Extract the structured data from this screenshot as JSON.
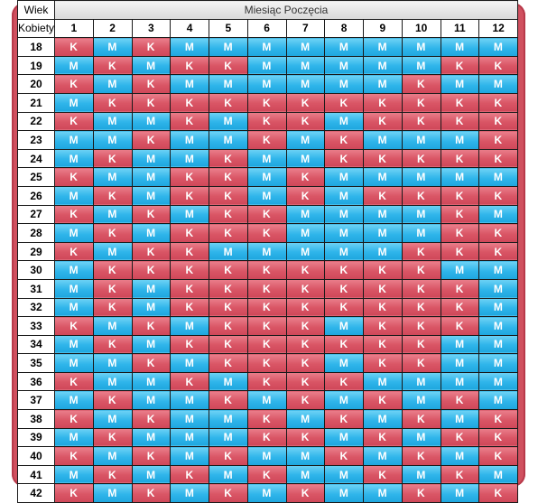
{
  "header": {
    "age_label": "Wiek",
    "age_sublabel": "Kobiety",
    "month_title": "Miesiąc Poczęcia",
    "months": [
      "1",
      "2",
      "3",
      "4",
      "5",
      "6",
      "7",
      "8",
      "9",
      "10",
      "11",
      "12"
    ]
  },
  "colors": {
    "K": "#d95565",
    "M": "#2fb5ea"
  },
  "rows": [
    {
      "age": "18",
      "cells": [
        "K",
        "M",
        "K",
        "M",
        "M",
        "M",
        "M",
        "M",
        "M",
        "M",
        "M",
        "M"
      ]
    },
    {
      "age": "19",
      "cells": [
        "M",
        "K",
        "M",
        "K",
        "K",
        "M",
        "M",
        "M",
        "M",
        "M",
        "K",
        "K"
      ]
    },
    {
      "age": "20",
      "cells": [
        "K",
        "M",
        "K",
        "M",
        "M",
        "M",
        "M",
        "M",
        "M",
        "K",
        "M",
        "M"
      ]
    },
    {
      "age": "21",
      "cells": [
        "M",
        "K",
        "K",
        "K",
        "K",
        "K",
        "K",
        "K",
        "K",
        "K",
        "K",
        "K"
      ]
    },
    {
      "age": "22",
      "cells": [
        "K",
        "M",
        "M",
        "K",
        "M",
        "K",
        "K",
        "M",
        "K",
        "K",
        "K",
        "K"
      ]
    },
    {
      "age": "23",
      "cells": [
        "M",
        "M",
        "K",
        "M",
        "M",
        "K",
        "M",
        "K",
        "M",
        "M",
        "M",
        "K"
      ]
    },
    {
      "age": "24",
      "cells": [
        "M",
        "K",
        "M",
        "M",
        "K",
        "M",
        "M",
        "K",
        "K",
        "K",
        "K",
        "K"
      ]
    },
    {
      "age": "25",
      "cells": [
        "K",
        "M",
        "M",
        "K",
        "K",
        "M",
        "K",
        "M",
        "M",
        "M",
        "M",
        "M"
      ]
    },
    {
      "age": "26",
      "cells": [
        "M",
        "K",
        "M",
        "K",
        "K",
        "M",
        "K",
        "M",
        "K",
        "K",
        "K",
        "K"
      ]
    },
    {
      "age": "27",
      "cells": [
        "K",
        "M",
        "K",
        "M",
        "K",
        "K",
        "M",
        "M",
        "M",
        "M",
        "K",
        "M"
      ]
    },
    {
      "age": "28",
      "cells": [
        "M",
        "K",
        "M",
        "K",
        "K",
        "K",
        "M",
        "M",
        "M",
        "M",
        "K",
        "K"
      ]
    },
    {
      "age": "29",
      "cells": [
        "K",
        "M",
        "K",
        "K",
        "M",
        "M",
        "M",
        "M",
        "M",
        "K",
        "K",
        "K"
      ]
    },
    {
      "age": "30",
      "cells": [
        "M",
        "K",
        "K",
        "K",
        "K",
        "K",
        "K",
        "K",
        "K",
        "K",
        "M",
        "M"
      ]
    },
    {
      "age": "31",
      "cells": [
        "M",
        "K",
        "M",
        "K",
        "K",
        "K",
        "K",
        "K",
        "K",
        "K",
        "K",
        "M"
      ]
    },
    {
      "age": "32",
      "cells": [
        "M",
        "K",
        "M",
        "K",
        "K",
        "K",
        "K",
        "K",
        "K",
        "K",
        "K",
        "M"
      ]
    },
    {
      "age": "33",
      "cells": [
        "K",
        "M",
        "K",
        "M",
        "K",
        "K",
        "K",
        "M",
        "K",
        "K",
        "K",
        "M"
      ]
    },
    {
      "age": "34",
      "cells": [
        "M",
        "K",
        "M",
        "K",
        "K",
        "K",
        "K",
        "K",
        "K",
        "K",
        "M",
        "M"
      ]
    },
    {
      "age": "35",
      "cells": [
        "M",
        "M",
        "K",
        "M",
        "K",
        "K",
        "K",
        "M",
        "K",
        "K",
        "M",
        "M"
      ]
    },
    {
      "age": "36",
      "cells": [
        "K",
        "M",
        "M",
        "K",
        "M",
        "K",
        "K",
        "K",
        "M",
        "M",
        "M",
        "M"
      ]
    },
    {
      "age": "37",
      "cells": [
        "M",
        "K",
        "M",
        "M",
        "K",
        "M",
        "K",
        "M",
        "K",
        "M",
        "K",
        "M"
      ]
    },
    {
      "age": "38",
      "cells": [
        "K",
        "M",
        "K",
        "M",
        "M",
        "K",
        "M",
        "K",
        "M",
        "K",
        "M",
        "K"
      ]
    },
    {
      "age": "39",
      "cells": [
        "M",
        "K",
        "M",
        "M",
        "M",
        "K",
        "K",
        "M",
        "K",
        "M",
        "K",
        "K"
      ]
    },
    {
      "age": "40",
      "cells": [
        "K",
        "M",
        "K",
        "M",
        "K",
        "M",
        "M",
        "K",
        "M",
        "K",
        "M",
        "K"
      ]
    },
    {
      "age": "41",
      "cells": [
        "M",
        "K",
        "M",
        "K",
        "M",
        "K",
        "M",
        "M",
        "K",
        "M",
        "K",
        "M"
      ]
    },
    {
      "age": "42",
      "cells": [
        "K",
        "M",
        "K",
        "M",
        "K",
        "M",
        "K",
        "M",
        "M",
        "K",
        "M",
        "K"
      ]
    }
  ]
}
